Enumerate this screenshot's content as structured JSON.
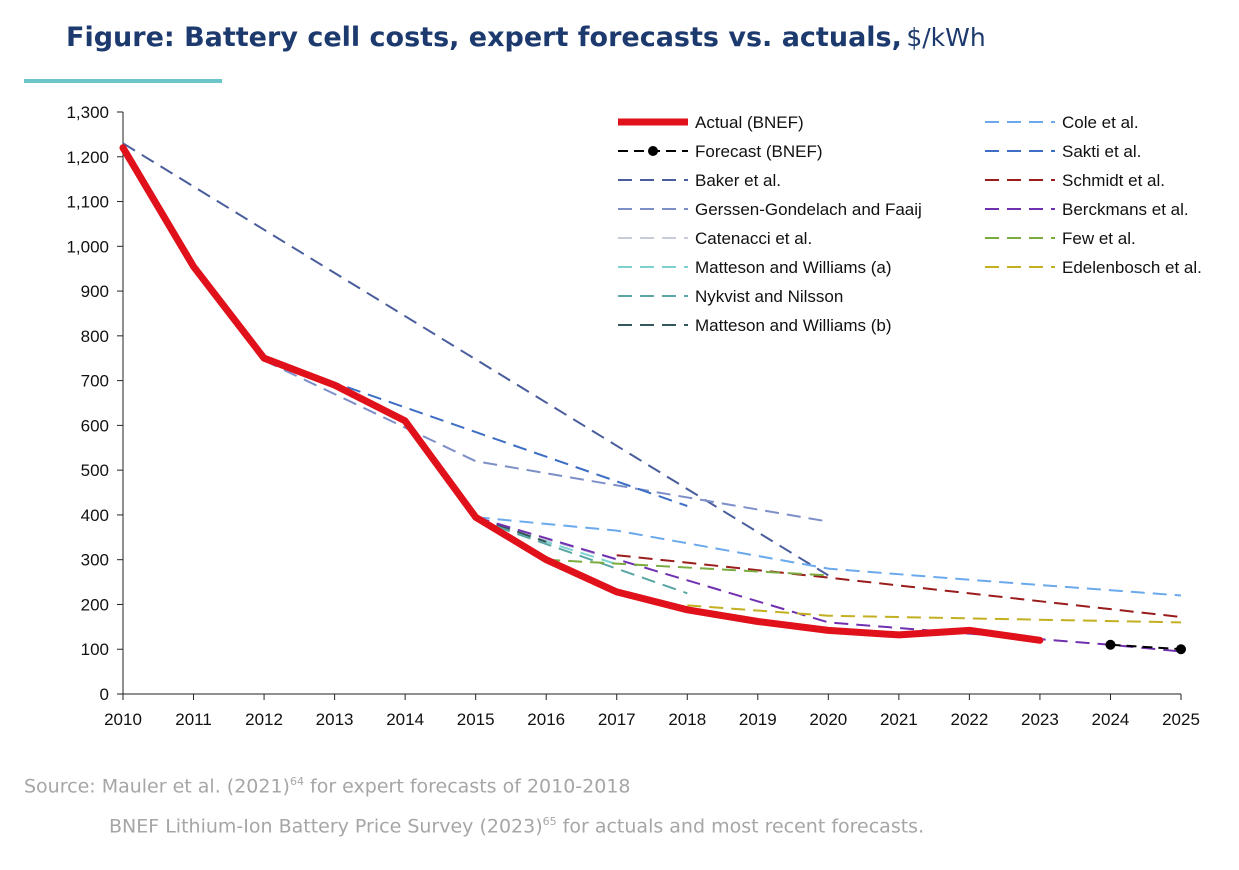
{
  "header": {
    "title_bold": "Figure: Battery cell costs, expert forecasts vs. actuals,",
    "title_unit": "$/kWh"
  },
  "source": {
    "line1_text": "Source: Mauler et al. (2021)",
    "line1_sup": "64",
    "line1_tail": " for expert forecasts of 2010-2018",
    "line2_text": "BNEF Lithium-Ion Battery Price Survey (2023)",
    "line2_sup": "65",
    "line2_tail": " for actuals and most recent forecasts."
  },
  "chart_data": {
    "type": "line",
    "title": "Battery cell costs, expert forecasts vs. actuals",
    "ylabel": "$/kWh",
    "xlabel": "",
    "xlim": [
      2010,
      2025
    ],
    "ylim": [
      0,
      1300
    ],
    "x_ticks": [
      "2010",
      "2011",
      "2012",
      "2013",
      "2014",
      "2015",
      "2016",
      "2017",
      "2018",
      "2019",
      "2020",
      "2021",
      "2022",
      "2023",
      "2024",
      "2025"
    ],
    "y_ticks": [
      "0",
      "100",
      "200",
      "300",
      "400",
      "500",
      "600",
      "700",
      "800",
      "900",
      "1,000",
      "1,100",
      "1,200",
      "1,300"
    ],
    "legend_position": "top-right, two columns",
    "series": [
      {
        "name": "Baker et al.",
        "color": "#4a5d9c",
        "style": "dashed",
        "points": [
          [
            2010,
            1230
          ],
          [
            2020,
            265
          ]
        ]
      },
      {
        "name": "Gerssen-Gondelach and Faaij",
        "color": "#7d8fc9",
        "style": "dashed",
        "points": [
          [
            2012,
            745
          ],
          [
            2015,
            520
          ],
          [
            2020,
            385
          ]
        ]
      },
      {
        "name": "Catenacci et al.",
        "color": "#c7ccd8",
        "style": "dashed",
        "points": [
          [
            2015,
            390
          ],
          [
            2017,
            300
          ]
        ]
      },
      {
        "name": "Matteson and Williams (a)",
        "color": "#7fd1d1",
        "style": "dashed",
        "points": [
          [
            2015,
            390
          ],
          [
            2017,
            290
          ]
        ]
      },
      {
        "name": "Nykvist and Nilsson",
        "color": "#5aa6a2",
        "style": "dashed",
        "points": [
          [
            2015,
            390
          ],
          [
            2018,
            225
          ]
        ]
      },
      {
        "name": "Matteson and Williams (b)",
        "color": "#35565a",
        "style": "dashed",
        "points": [
          [
            2015,
            395
          ],
          [
            2016,
            340
          ]
        ]
      },
      {
        "name": "Cole et al.",
        "color": "#6aa9ec",
        "style": "dashed",
        "points": [
          [
            2015,
            395
          ],
          [
            2017,
            365
          ],
          [
            2020,
            280
          ],
          [
            2022,
            255
          ],
          [
            2025,
            220
          ]
        ]
      },
      {
        "name": "Sakti et al.",
        "color": "#3d6fc4",
        "style": "dashed",
        "points": [
          [
            2012,
            750
          ],
          [
            2018,
            420
          ]
        ]
      },
      {
        "name": "Schmidt et al.",
        "color": "#9b1c1c",
        "style": "dashed",
        "points": [
          [
            2017,
            310
          ],
          [
            2020,
            260
          ],
          [
            2025,
            172
          ]
        ]
      },
      {
        "name": "Berckmans et al.",
        "color": "#7130b0",
        "style": "dashed",
        "points": [
          [
            2015,
            395
          ],
          [
            2020,
            160
          ],
          [
            2024,
            110
          ],
          [
            2025,
            95
          ]
        ]
      },
      {
        "name": "Few et al.",
        "color": "#7aab3f",
        "style": "dashed",
        "points": [
          [
            2016,
            300
          ],
          [
            2020,
            265
          ]
        ]
      },
      {
        "name": "Edelenbosch et al.",
        "color": "#c2b021",
        "style": "dashed",
        "points": [
          [
            2018,
            198
          ],
          [
            2020,
            175
          ],
          [
            2025,
            160
          ]
        ]
      },
      {
        "name": "Actual (BNEF)",
        "color": "#e0111a",
        "style": "solid-thick",
        "points": [
          [
            2010,
            1220
          ],
          [
            2011,
            955
          ],
          [
            2012,
            750
          ],
          [
            2013,
            690
          ],
          [
            2014,
            610
          ],
          [
            2015,
            395
          ],
          [
            2016,
            300
          ],
          [
            2017,
            228
          ],
          [
            2018,
            188
          ],
          [
            2019,
            162
          ],
          [
            2020,
            142
          ],
          [
            2021,
            132
          ],
          [
            2022,
            142
          ],
          [
            2023,
            120
          ]
        ]
      },
      {
        "name": "Forecast (BNEF)",
        "color": "#000000",
        "style": "dashed-dots",
        "points": [
          [
            2024,
            110
          ],
          [
            2025,
            100
          ]
        ]
      }
    ],
    "legend_columns": [
      [
        "Actual (BNEF)",
        "Forecast (BNEF)",
        "Baker et al.",
        "Gerssen-Gondelach and Faaij",
        "Catenacci et al.",
        "Matteson and Williams (a)",
        "Nykvist and Nilsson",
        "Matteson and Williams (b)"
      ],
      [
        "Cole et al.",
        "Sakti et al.",
        "Schmidt et al.",
        "Berckmans et al.",
        "Few et al.",
        "Edelenbosch et al."
      ]
    ]
  }
}
